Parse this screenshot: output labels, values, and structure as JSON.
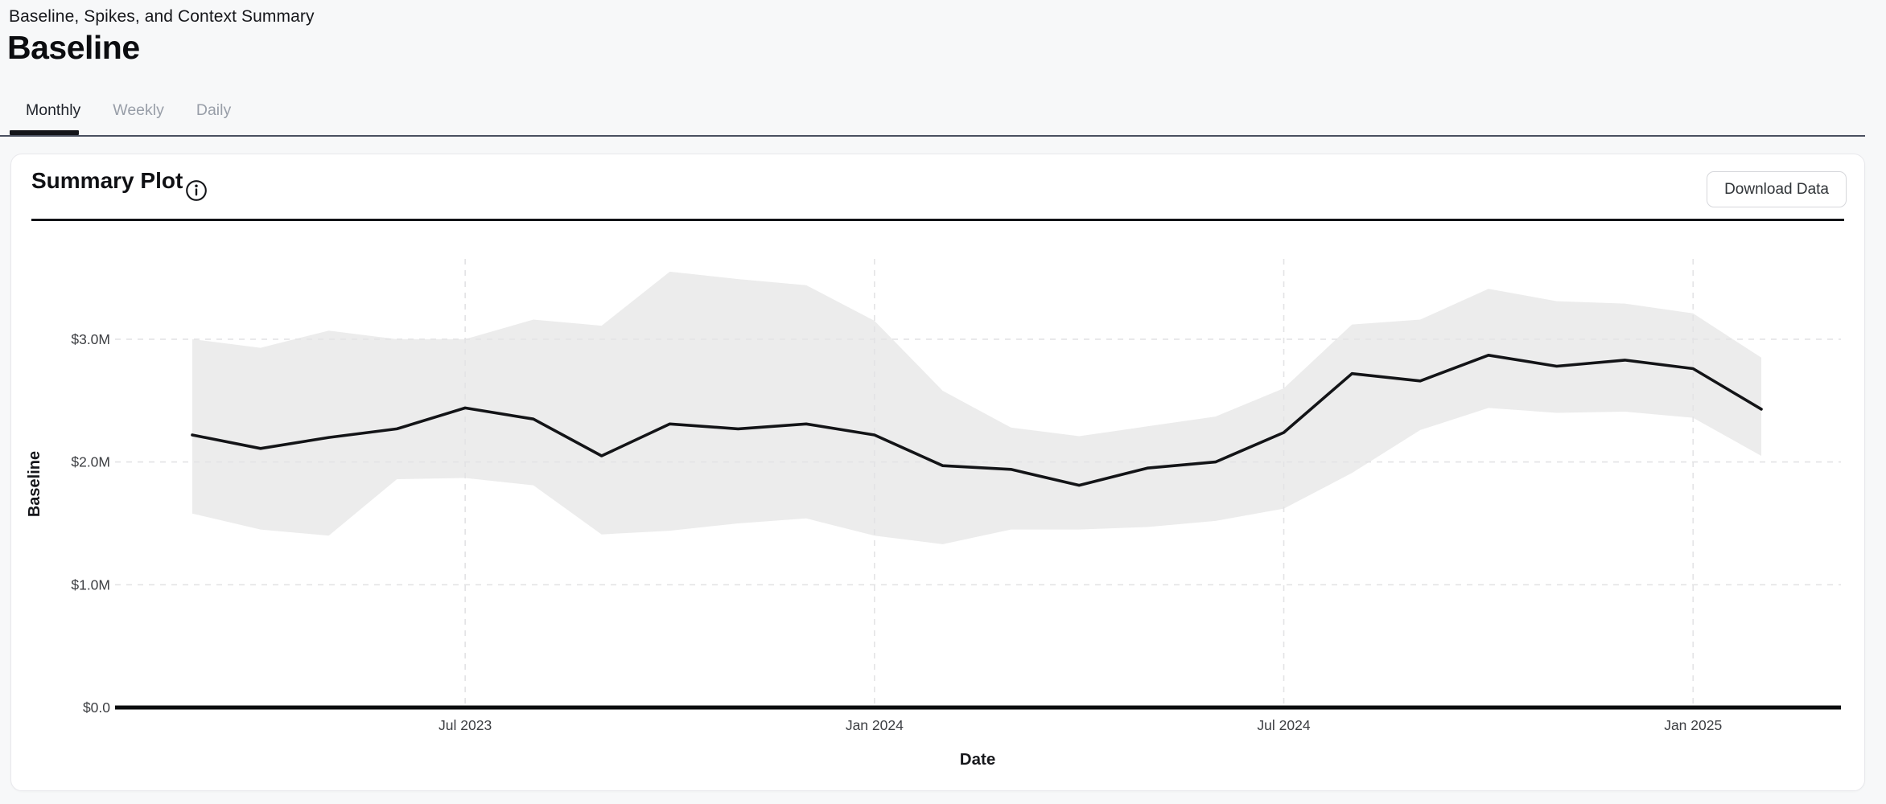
{
  "page": {
    "title": "Baseline, Spikes, and Context Summary",
    "heading": "Baseline"
  },
  "tabs": [
    {
      "label": "Monthly",
      "active": true
    },
    {
      "label": "Weekly",
      "active": false
    },
    {
      "label": "Daily",
      "active": false
    }
  ],
  "card": {
    "title": "Summary Plot",
    "info_icon": "info-circle-icon",
    "download_button_label": "Download Data"
  },
  "chart_data": {
    "type": "line",
    "title": "Summary Plot",
    "xlabel": "Date",
    "ylabel": "Baseline",
    "x": [
      "Mar 2023",
      "Apr 2023",
      "May 2023",
      "Jun 2023",
      "Jul 2023",
      "Aug 2023",
      "Sep 2023",
      "Oct 2023",
      "Nov 2023",
      "Dec 2023",
      "Jan 2024",
      "Feb 2024",
      "Mar 2024",
      "Apr 2024",
      "May 2024",
      "Jun 2024",
      "Jul 2024",
      "Aug 2024",
      "Sep 2024",
      "Oct 2024",
      "Nov 2024",
      "Dec 2024",
      "Jan 2025",
      "Feb 2025"
    ],
    "series": [
      {
        "name": "baseline",
        "values": [
          2.22,
          2.11,
          2.2,
          2.27,
          2.44,
          2.35,
          2.05,
          2.31,
          2.27,
          2.31,
          2.22,
          1.97,
          1.94,
          1.81,
          1.95,
          2.0,
          2.24,
          2.72,
          2.66,
          2.87,
          2.78,
          2.83,
          2.76,
          2.43
        ]
      },
      {
        "name": "context_band_upper",
        "values": [
          3.0,
          2.93,
          3.07,
          3.0,
          3.0,
          3.16,
          3.11,
          3.55,
          3.49,
          3.44,
          3.15,
          2.58,
          2.28,
          2.21,
          2.29,
          2.37,
          2.6,
          3.12,
          3.16,
          3.41,
          3.31,
          3.29,
          3.21,
          2.85
        ]
      },
      {
        "name": "context_band_lower",
        "values": [
          1.58,
          1.45,
          1.4,
          1.86,
          1.87,
          1.81,
          1.41,
          1.44,
          1.5,
          1.54,
          1.4,
          1.33,
          1.45,
          1.45,
          1.47,
          1.52,
          1.62,
          1.91,
          2.26,
          2.44,
          2.4,
          2.41,
          2.36,
          2.05
        ]
      }
    ],
    "x_tick_indices": [
      4,
      10,
      16,
      22
    ],
    "x_tick_labels": [
      "Jul 2023",
      "Jan 2024",
      "Jul 2024",
      "Jan 2025"
    ],
    "y_ticks": [
      {
        "label": "$0.0",
        "value": 0
      },
      {
        "label": "$1.0M",
        "value": 1
      },
      {
        "label": "$2.0M",
        "value": 2
      },
      {
        "label": "$3.0M",
        "value": 3
      }
    ],
    "ylim": [
      0,
      3.65
    ],
    "unit": "millions USD",
    "grid": true,
    "legend": "none",
    "colors": {
      "line": "#131417",
      "band": "#ececec",
      "grid": "#e3e3e5",
      "axis": "#0b0c0e",
      "tick_text": "#3c3e42",
      "axis_title_text": "#17181c"
    }
  }
}
